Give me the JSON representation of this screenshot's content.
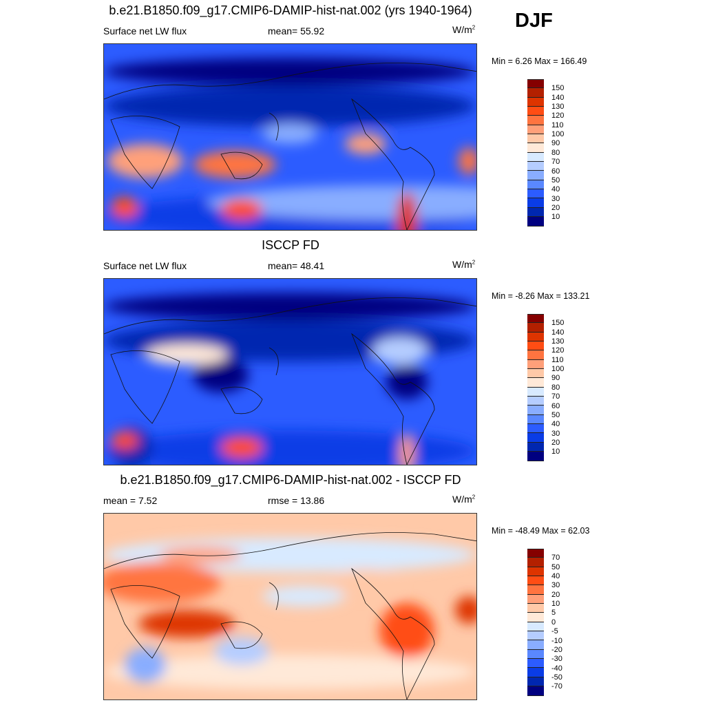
{
  "season": "DJF",
  "units_base": "W/m",
  "units_exp": "2",
  "colors": [
    "#850000",
    "#b32000",
    "#de3400",
    "#ff4d14",
    "#ff7440",
    "#ffa07a",
    "#ffc9a8",
    "#ffe9d8",
    "#d8eaff",
    "#b5cdff",
    "#89adff",
    "#5a88ff",
    "#2c5cff",
    "#0a3ce6",
    "#0027b0",
    "#000080"
  ],
  "panels": [
    {
      "title": "b.e21.B1850.f09_g17.CMIP6-DAMIP-hist-nat.002 (yrs 1940-1964)",
      "left": "Surface net LW flux",
      "mid": "mean=  55.92",
      "minmax": "Min =   6.26 Max = 166.49",
      "ticks": [
        "150",
        "140",
        "130",
        "120",
        "110",
        "100",
        "90",
        "80",
        "70",
        "60",
        "50",
        "40",
        "30",
        "20",
        "10"
      ],
      "base": "#2c5cff"
    },
    {
      "title": "ISCCP FD",
      "left": "Surface net LW flux",
      "mid": "mean=  48.41",
      "minmax": "Min =  -8.26 Max = 133.21",
      "ticks": [
        "150",
        "140",
        "130",
        "120",
        "110",
        "100",
        "90",
        "80",
        "70",
        "60",
        "50",
        "40",
        "30",
        "20",
        "10"
      ],
      "base": "#2c5cff"
    },
    {
      "title": "b.e21.B1850.f09_g17.CMIP6-DAMIP-hist-nat.002 - ISCCP FD",
      "left": "mean =   7.52",
      "mid": "rmse =  13.86",
      "minmax": "Min = -48.49 Max =  62.03",
      "ticks": [
        "70",
        "50",
        "40",
        "30",
        "20",
        "10",
        "5",
        "0",
        "-5",
        "-10",
        "-20",
        "-30",
        "-40",
        "-50",
        "-70"
      ],
      "base": "#ffc9a8"
    }
  ]
}
